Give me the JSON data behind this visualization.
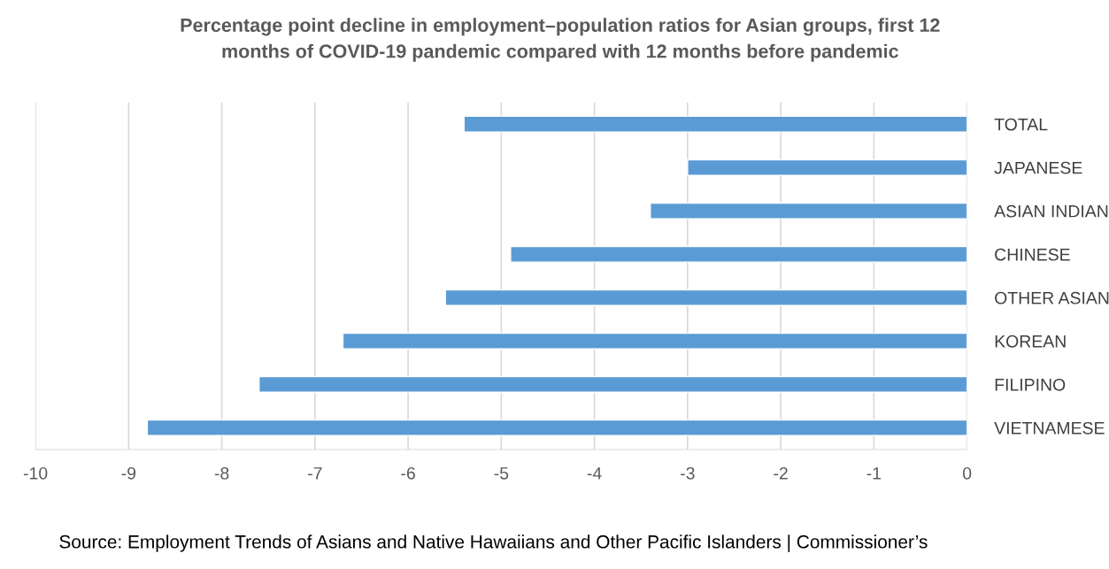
{
  "chart_data": {
    "type": "bar",
    "orientation": "horizontal",
    "title": "Percentage point decline in employment–population ratios for Asian groups, first 12\nmonths of COVID-19 pandemic compared with 12 months before pandemic",
    "categories": [
      "TOTAL",
      "JAPANESE",
      "ASIAN INDIAN",
      "CHINESE",
      "OTHER ASIAN",
      "KOREAN",
      "FILIPINO",
      "VIETNAMESE"
    ],
    "values": [
      -5.4,
      -3.0,
      -3.4,
      -4.9,
      -5.6,
      -6.7,
      -7.6,
      -8.8
    ],
    "color": "#5b9bd5",
    "xlim": [
      -10,
      0
    ],
    "xticks": [
      -10,
      -9,
      -8,
      -7,
      -6,
      -5,
      -4,
      -3,
      -2,
      -1,
      0
    ],
    "grid": "x",
    "legend": false,
    "annotations": [
      "Source: Employment Trends of Asians and Native Hawaiians and Other Pacific Islanders | Commissioner’s"
    ]
  }
}
